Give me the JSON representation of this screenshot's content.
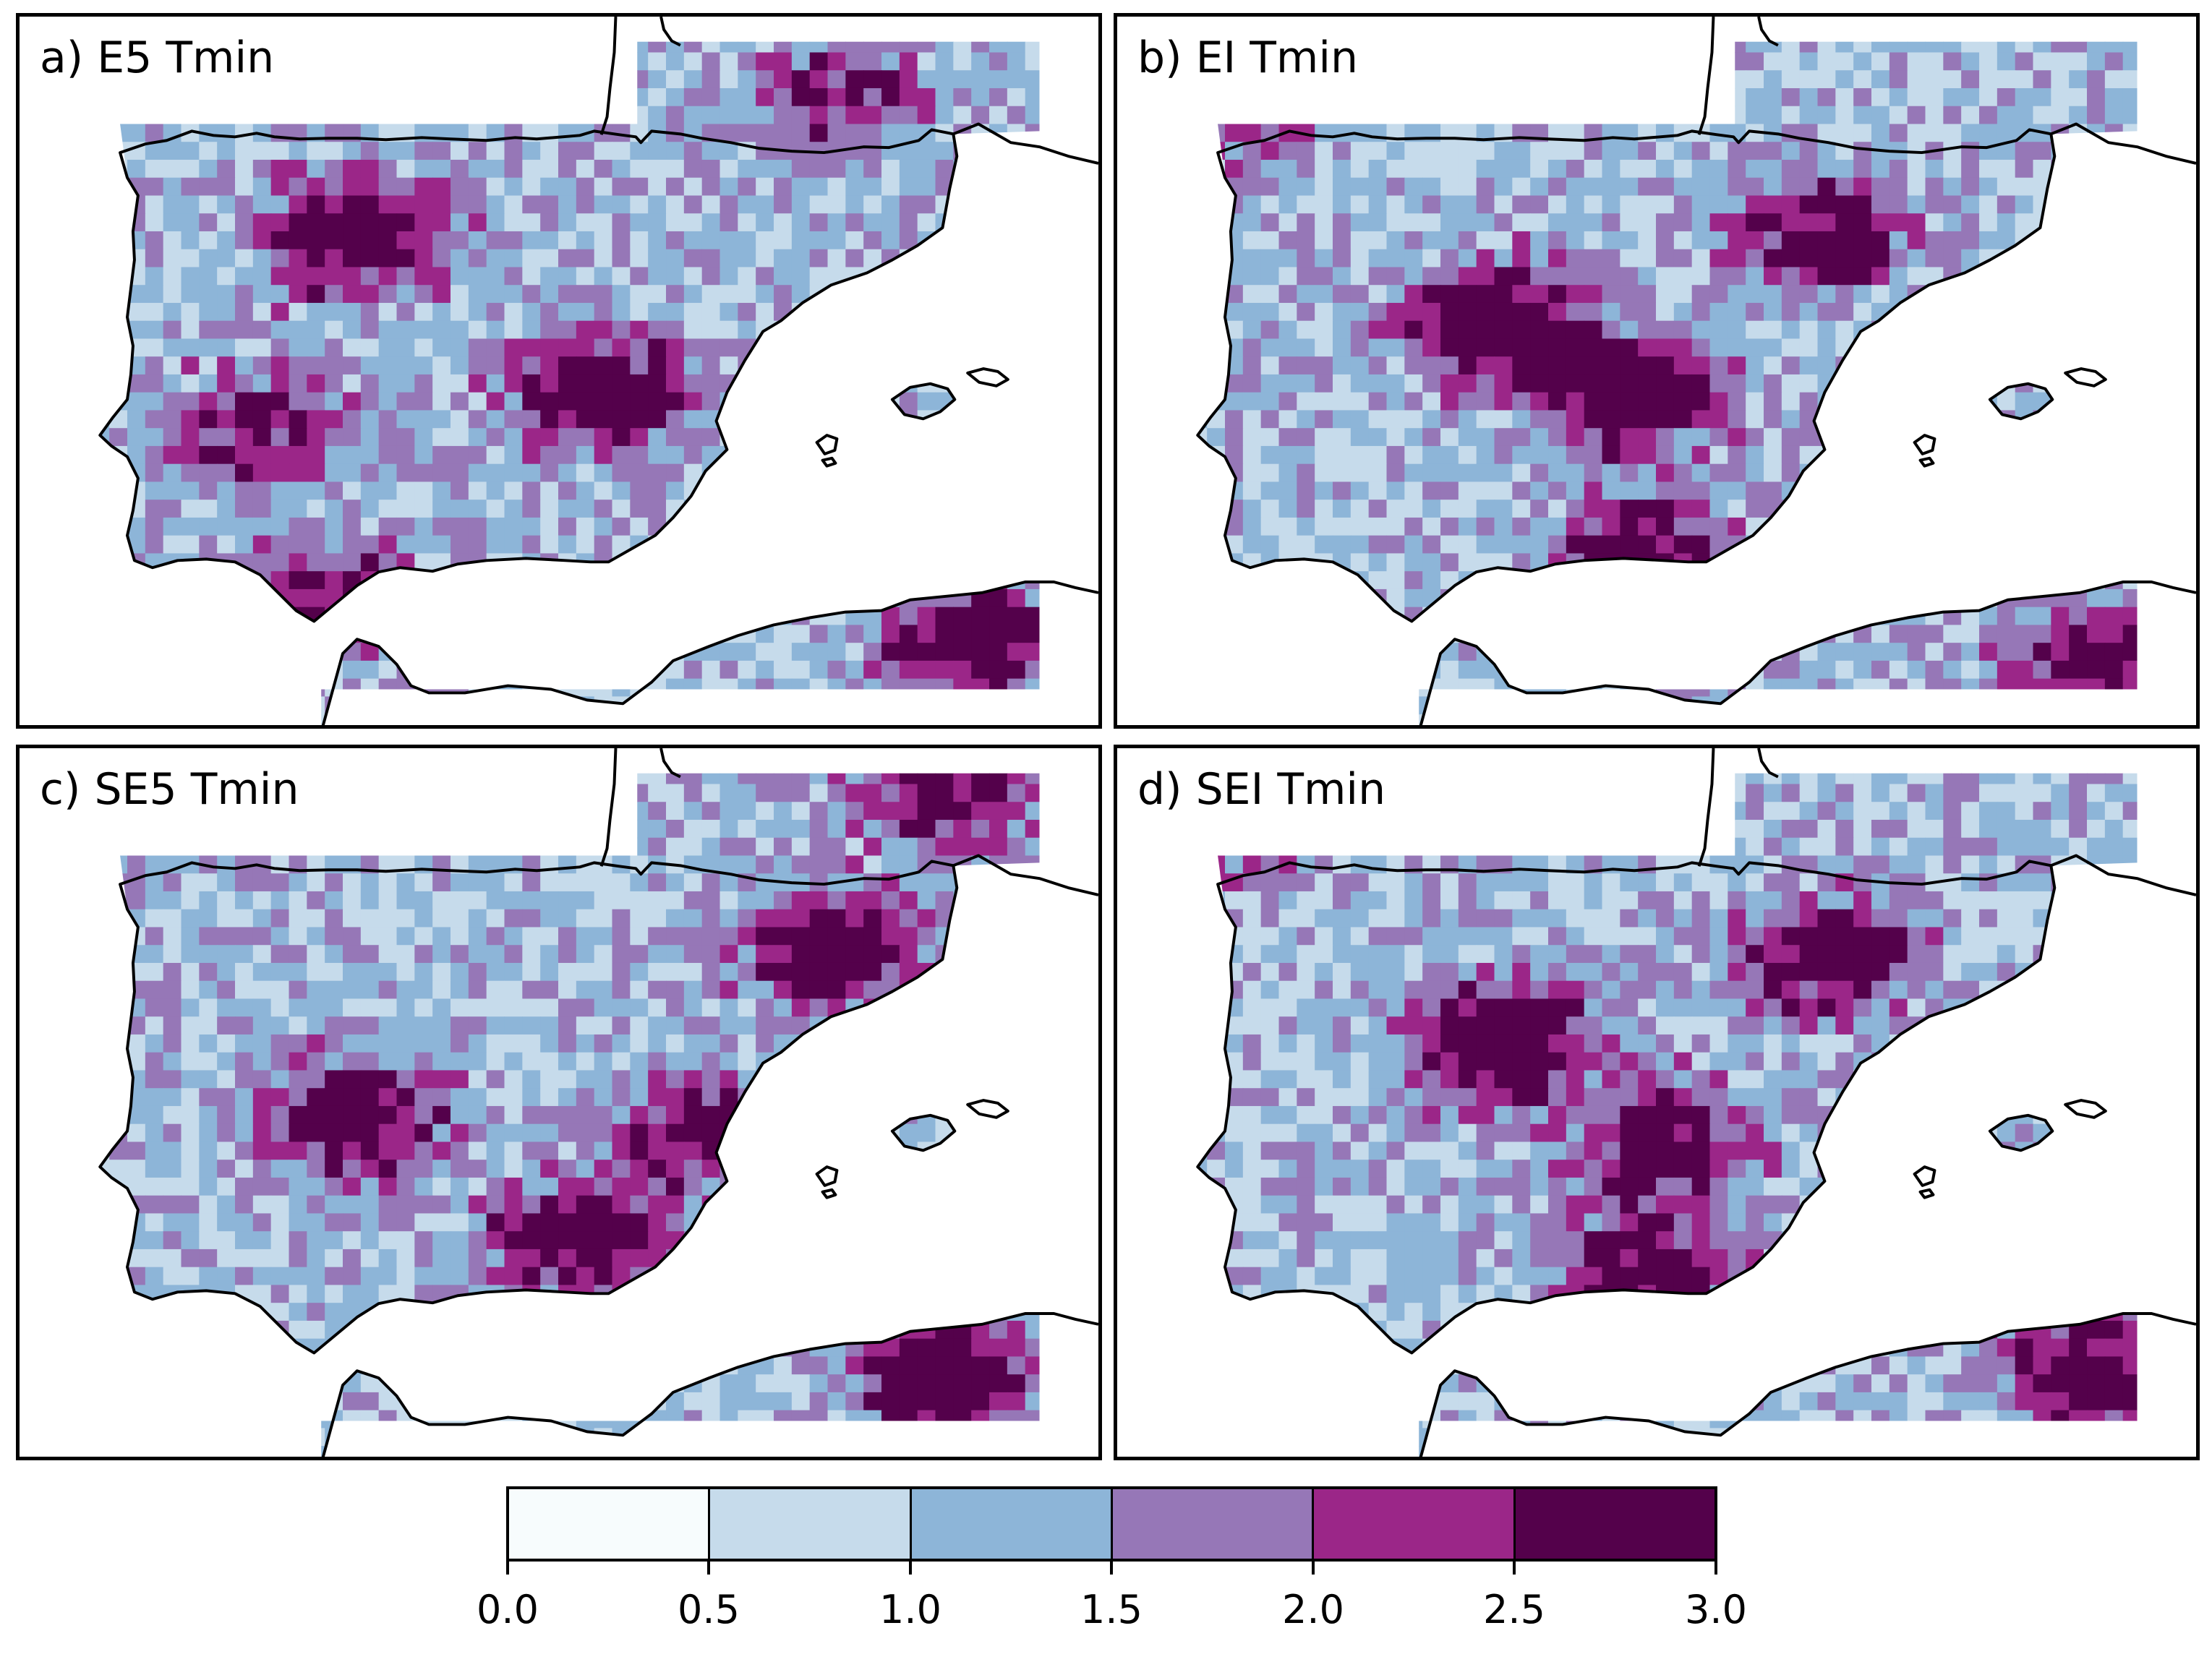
{
  "figure": {
    "panels": [
      {
        "id": "a",
        "title": "a) E5 Tmin",
        "seed": 11,
        "hotspots": [
          [
            0.3,
            0.3,
            2.2
          ],
          [
            0.53,
            0.52,
            2.3
          ],
          [
            0.21,
            0.57,
            1.6
          ],
          [
            0.28,
            0.8,
            1.5
          ],
          [
            0.88,
            0.87,
            2.2
          ],
          [
            0.75,
            0.1,
            1.3
          ]
        ]
      },
      {
        "id": "b",
        "title": "b) EI Tmin",
        "seed": 23,
        "hotspots": [
          [
            0.34,
            0.42,
            2.5
          ],
          [
            0.47,
            0.52,
            2.3
          ],
          [
            0.64,
            0.3,
            1.9
          ],
          [
            0.48,
            0.75,
            1.9
          ],
          [
            0.9,
            0.9,
            2.0
          ],
          [
            0.1,
            0.1,
            1.6
          ]
        ]
      },
      {
        "id": "c",
        "title": "c) SE5 Tmin",
        "seed": 37,
        "hotspots": [
          [
            0.3,
            0.51,
            2.2
          ],
          [
            0.51,
            0.68,
            2.1
          ],
          [
            0.75,
            0.27,
            2.5
          ],
          [
            0.62,
            0.53,
            1.8
          ],
          [
            0.85,
            0.87,
            2.6
          ],
          [
            0.85,
            0.05,
            1.8
          ]
        ]
      },
      {
        "id": "d",
        "title": "d) SEI Tmin",
        "seed": 53,
        "hotspots": [
          [
            0.35,
            0.4,
            2.5
          ],
          [
            0.5,
            0.55,
            2.0
          ],
          [
            0.65,
            0.28,
            2.1
          ],
          [
            0.48,
            0.73,
            2.0
          ],
          [
            0.9,
            0.87,
            2.2
          ],
          [
            0.1,
            0.08,
            2.0
          ]
        ]
      }
    ],
    "colorbar": {
      "colors": [
        "#f7fcfd",
        "#c6dbeb",
        "#8db5d8",
        "#9677b7",
        "#9b2688",
        "#54014b"
      ],
      "ticks": [
        "0.0",
        "0.5",
        "1.0",
        "1.5",
        "2.0",
        "2.5",
        "3.0"
      ],
      "min": 0,
      "max": 3
    }
  }
}
